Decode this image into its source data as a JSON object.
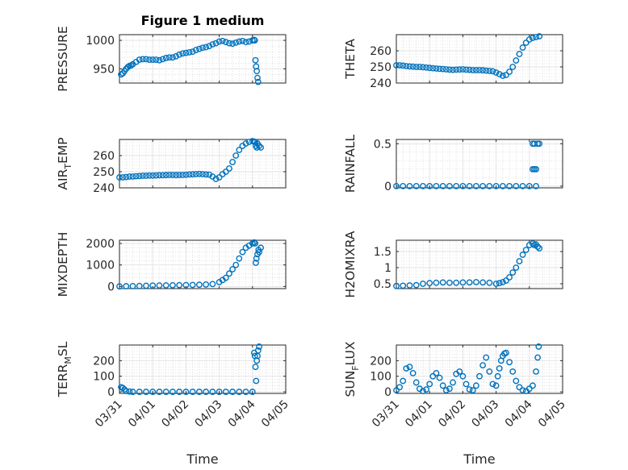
{
  "figure": {
    "title": "Figure 1 medium",
    "marker_color": "#0072BD",
    "x_tick_labels": [
      "03/31",
      "04/01",
      "04/02",
      "04/03",
      "04/04",
      "04/05"
    ],
    "x_label": "Time"
  },
  "chart_data": [
    {
      "type": "scatter",
      "ylabel": "PRESSURE",
      "title": "Figure 1 medium",
      "xlim": [
        0,
        5
      ],
      "ylim": [
        925,
        1010
      ],
      "yticks": [
        950,
        1000
      ],
      "grid": true,
      "minor_grid": true,
      "series": [
        {
          "x": [
            0.05,
            0.1,
            0.15,
            0.2,
            0.25,
            0.3,
            0.35,
            0.4,
            0.5,
            0.6,
            0.7,
            0.8,
            0.9,
            1.0,
            1.1,
            1.2,
            1.3,
            1.4,
            1.5,
            1.6,
            1.7,
            1.8,
            1.9,
            2.0,
            2.1,
            2.2,
            2.3,
            2.4,
            2.5,
            2.6,
            2.7,
            2.8,
            2.9,
            3.0,
            3.1,
            3.2,
            3.3,
            3.4,
            3.5,
            3.6,
            3.7,
            3.8,
            3.9,
            4.0,
            4.05,
            4.07,
            4.09,
            4.11,
            4.13,
            4.15,
            4.17
          ],
          "y": [
            940,
            942,
            946,
            950,
            953,
            955,
            956,
            958,
            962,
            966,
            967,
            967,
            966,
            966,
            966,
            965,
            967,
            969,
            970,
            970,
            972,
            975,
            977,
            978,
            979,
            980,
            983,
            985,
            987,
            988,
            990,
            993,
            995,
            998,
            999,
            997,
            995,
            994,
            996,
            998,
            999,
            997,
            998,
            1000,
            1001,
            1000,
            965,
            954,
            946,
            934,
            927
          ]
        }
      ]
    },
    {
      "type": "scatter",
      "ylabel": "THETA",
      "xlim": [
        0,
        5
      ],
      "ylim": [
        240,
        270
      ],
      "yticks": [
        240,
        250,
        260
      ],
      "grid": true,
      "minor_grid": true,
      "series": [
        {
          "x": [
            0.0,
            0.1,
            0.2,
            0.3,
            0.4,
            0.5,
            0.6,
            0.7,
            0.8,
            0.9,
            1.0,
            1.1,
            1.2,
            1.3,
            1.4,
            1.5,
            1.6,
            1.7,
            1.8,
            1.9,
            2.0,
            2.1,
            2.2,
            2.3,
            2.4,
            2.5,
            2.6,
            2.7,
            2.8,
            2.9,
            3.0,
            3.1,
            3.2,
            3.3,
            3.4,
            3.5,
            3.6,
            3.7,
            3.8,
            3.9,
            4.0,
            4.1,
            4.2,
            4.3
          ],
          "y": [
            251,
            251,
            250.8,
            250.5,
            250.3,
            250.2,
            250,
            250,
            249.8,
            249.6,
            249.4,
            249.2,
            249,
            248.8,
            248.7,
            248.5,
            248.3,
            248.2,
            248.3,
            248.4,
            248.5,
            248.3,
            248.2,
            248,
            248,
            248,
            247.9,
            247.7,
            247.5,
            247.3,
            246.5,
            245.5,
            244.5,
            245,
            247,
            250,
            254,
            258,
            262,
            265,
            267,
            268,
            268.5,
            269
          ]
        }
      ]
    },
    {
      "type": "scatter",
      "ylabel": "AIR_TEMP",
      "xlim": [
        0,
        5
      ],
      "ylim": [
        240,
        270
      ],
      "yticks": [
        240,
        250,
        260
      ],
      "grid": true,
      "minor_grid": true,
      "series": [
        {
          "x": [
            0.0,
            0.1,
            0.2,
            0.3,
            0.4,
            0.5,
            0.6,
            0.7,
            0.8,
            0.9,
            1.0,
            1.1,
            1.2,
            1.3,
            1.4,
            1.5,
            1.6,
            1.7,
            1.8,
            1.9,
            2.0,
            2.1,
            2.2,
            2.3,
            2.4,
            2.5,
            2.6,
            2.7,
            2.8,
            2.9,
            3.0,
            3.1,
            3.2,
            3.3,
            3.4,
            3.5,
            3.6,
            3.7,
            3.8,
            3.9,
            4.0,
            4.05,
            4.08,
            4.1,
            4.13,
            4.15,
            4.2,
            4.25
          ],
          "y": [
            246.5,
            246.5,
            246.7,
            247,
            247,
            247.2,
            247.3,
            247.5,
            247.5,
            247.6,
            247.6,
            247.7,
            247.8,
            247.8,
            247.9,
            248,
            248,
            247.9,
            248,
            248,
            248.1,
            248.3,
            248.4,
            248.5,
            248.6,
            248.5,
            248.3,
            248.2,
            247,
            245.5,
            246.5,
            248.5,
            250,
            252,
            256,
            260,
            263.5,
            266,
            267.5,
            268.5,
            269,
            268.7,
            268.5,
            266,
            265,
            267.5,
            266,
            265
          ]
        }
      ]
    },
    {
      "type": "scatter",
      "ylabel": "RAINFALL",
      "xlim": [
        0,
        5
      ],
      "ylim": [
        -0.02,
        0.55
      ],
      "yticks": [
        0,
        0.5
      ],
      "grid": true,
      "minor_grid": true,
      "series": [
        {
          "x": [
            0.0,
            0.2,
            0.4,
            0.6,
            0.8,
            1.0,
            1.2,
            1.4,
            1.6,
            1.8,
            2.0,
            2.2,
            2.4,
            2.6,
            2.8,
            3.0,
            3.2,
            3.4,
            3.6,
            3.8,
            4.0,
            4.1,
            4.15,
            4.2,
            4.1,
            4.15,
            4.2,
            4.25,
            4.3
          ],
          "y": [
            0,
            0,
            0,
            0,
            0,
            0,
            0,
            0,
            0,
            0,
            0,
            0,
            0,
            0,
            0,
            0,
            0,
            0,
            0,
            0,
            0,
            0.5,
            0.5,
            0,
            0.2,
            0.2,
            0.2,
            0.5,
            0.5
          ]
        }
      ]
    },
    {
      "type": "scatter",
      "ylabel": "MIXDEPTH",
      "xlim": [
        0,
        5
      ],
      "ylim": [
        -100,
        2150
      ],
      "yticks": [
        0,
        1000,
        2000
      ],
      "grid": true,
      "minor_grid": true,
      "series": [
        {
          "x": [
            0.0,
            0.2,
            0.4,
            0.6,
            0.8,
            1.0,
            1.2,
            1.4,
            1.6,
            1.8,
            2.0,
            2.2,
            2.4,
            2.6,
            2.8,
            3.0,
            3.1,
            3.2,
            3.3,
            3.4,
            3.5,
            3.6,
            3.7,
            3.8,
            3.9,
            4.0,
            4.05,
            4.08,
            4.1,
            4.12,
            4.15,
            4.18,
            4.2,
            4.25
          ],
          "y": [
            5,
            10,
            15,
            20,
            30,
            40,
            45,
            50,
            55,
            60,
            65,
            70,
            80,
            90,
            110,
            200,
            300,
            400,
            600,
            800,
            1000,
            1300,
            1600,
            1800,
            1900,
            2000,
            2050,
            2000,
            1100,
            1300,
            1500,
            1700,
            1600,
            1800
          ]
        }
      ]
    },
    {
      "type": "scatter",
      "ylabel": "H2OMIXRA",
      "xlim": [
        0,
        5
      ],
      "ylim": [
        0.35,
        1.85
      ],
      "yticks": [
        0.5,
        1,
        1.5
      ],
      "grid": true,
      "minor_grid": true,
      "series": [
        {
          "x": [
            0.0,
            0.2,
            0.4,
            0.6,
            0.8,
            1.0,
            1.2,
            1.4,
            1.6,
            1.8,
            2.0,
            2.2,
            2.4,
            2.6,
            2.8,
            3.0,
            3.1,
            3.2,
            3.3,
            3.4,
            3.5,
            3.6,
            3.7,
            3.8,
            3.9,
            4.0,
            4.1,
            4.15,
            4.2,
            4.25,
            4.3
          ],
          "y": [
            0.43,
            0.44,
            0.45,
            0.46,
            0.5,
            0.52,
            0.53,
            0.54,
            0.53,
            0.53,
            0.54,
            0.54,
            0.55,
            0.54,
            0.53,
            0.5,
            0.52,
            0.55,
            0.6,
            0.7,
            0.85,
            1.0,
            1.2,
            1.4,
            1.55,
            1.7,
            1.75,
            1.7,
            1.72,
            1.65,
            1.6
          ]
        }
      ]
    },
    {
      "type": "scatter",
      "ylabel": "TERR_MSL",
      "xlim": [
        0,
        5
      ],
      "ylim": [
        -10,
        300
      ],
      "yticks": [
        0,
        100,
        200
      ],
      "grid": true,
      "minor_grid": true,
      "series": [
        {
          "x": [
            0.05,
            0.1,
            0.15,
            0.2,
            0.3,
            0.4,
            0.6,
            0.8,
            1.0,
            1.2,
            1.4,
            1.6,
            1.8,
            2.0,
            2.2,
            2.4,
            2.6,
            2.8,
            3.0,
            3.2,
            3.4,
            3.6,
            3.8,
            4.0,
            4.05,
            4.07,
            4.09,
            4.11,
            4.13,
            4.15,
            4.17,
            4.2
          ],
          "y": [
            30,
            25,
            15,
            5,
            2,
            0,
            0,
            0,
            0,
            0,
            0,
            0,
            0,
            0,
            0,
            0,
            0,
            0,
            0,
            0,
            0,
            0,
            0,
            0,
            250,
            230,
            160,
            70,
            200,
            230,
            265,
            290
          ]
        }
      ]
    },
    {
      "type": "scatter",
      "ylabel": "SUN_FLUX",
      "xlim": [
        0,
        5
      ],
      "ylim": [
        -10,
        300
      ],
      "yticks": [
        0,
        100,
        200
      ],
      "grid": true,
      "minor_grid": true,
      "series": [
        {
          "x": [
            0.0,
            0.1,
            0.2,
            0.3,
            0.4,
            0.5,
            0.6,
            0.7,
            0.8,
            0.9,
            1.0,
            1.1,
            1.2,
            1.3,
            1.4,
            1.5,
            1.6,
            1.7,
            1.8,
            1.9,
            2.0,
            2.1,
            2.2,
            2.3,
            2.4,
            2.5,
            2.6,
            2.7,
            2.8,
            2.9,
            3.0,
            3.05,
            3.1,
            3.15,
            3.2,
            3.25,
            3.3,
            3.4,
            3.5,
            3.6,
            3.7,
            3.8,
            3.9,
            4.0,
            4.1,
            4.2,
            4.25,
            4.28
          ],
          "y": [
            10,
            30,
            70,
            150,
            160,
            120,
            60,
            20,
            5,
            15,
            50,
            100,
            120,
            90,
            40,
            10,
            20,
            60,
            115,
            130,
            100,
            50,
            15,
            10,
            40,
            100,
            170,
            220,
            130,
            50,
            40,
            100,
            150,
            200,
            230,
            245,
            250,
            190,
            130,
            70,
            30,
            10,
            5,
            20,
            40,
            130,
            220,
            290
          ]
        }
      ]
    }
  ]
}
